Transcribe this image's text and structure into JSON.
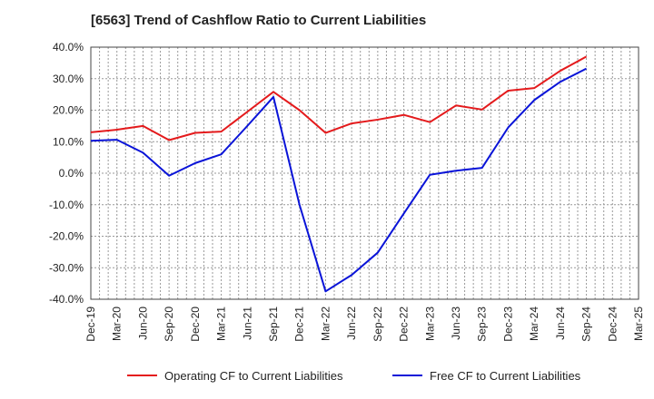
{
  "chart_data": {
    "type": "line",
    "title": "[6563]  Trend of Cashflow Ratio to Current Liabilities",
    "xlabel": "",
    "ylabel": "",
    "x": [
      "Dec-19",
      "Mar-20",
      "Jun-20",
      "Sep-20",
      "Dec-20",
      "Mar-21",
      "Jun-21",
      "Sep-21",
      "Dec-21",
      "Mar-22",
      "Jun-22",
      "Sep-22",
      "Dec-22",
      "Mar-23",
      "Jun-23",
      "Sep-23",
      "Dec-23",
      "Mar-24",
      "Jun-24",
      "Sep-24",
      "Dec-24",
      "Mar-25"
    ],
    "ylim": [
      -40,
      40
    ],
    "yticks": [
      40,
      30,
      20,
      10,
      0,
      -10,
      -20,
      -30,
      -40
    ],
    "ytick_labels": [
      "40.0%",
      "30.0%",
      "20.0%",
      "10.0%",
      "0.0%",
      "-10.0%",
      "-20.0%",
      "-30.0%",
      "-40.0%"
    ],
    "grid": true,
    "legend_position": "bottom",
    "series": [
      {
        "name": "Operating CF to Current Liabilities",
        "color": "#e41a1c",
        "values": [
          13.0,
          13.8,
          15.0,
          10.5,
          12.8,
          13.2,
          19.5,
          25.8,
          20.0,
          12.8,
          15.8,
          17.0,
          18.5,
          16.2,
          21.5,
          20.2,
          26.2,
          27.0,
          32.5,
          37.0,
          null,
          null
        ]
      },
      {
        "name": "Free CF to Current Liabilities",
        "color": "#0a14d8",
        "values": [
          10.3,
          10.6,
          6.5,
          -0.8,
          3.2,
          6.0,
          15.0,
          24.2,
          -10.0,
          -37.5,
          -32.3,
          -25.2,
          -12.8,
          -0.5,
          0.8,
          1.7,
          14.5,
          23.2,
          29.0,
          33.2,
          null,
          null
        ]
      }
    ]
  }
}
